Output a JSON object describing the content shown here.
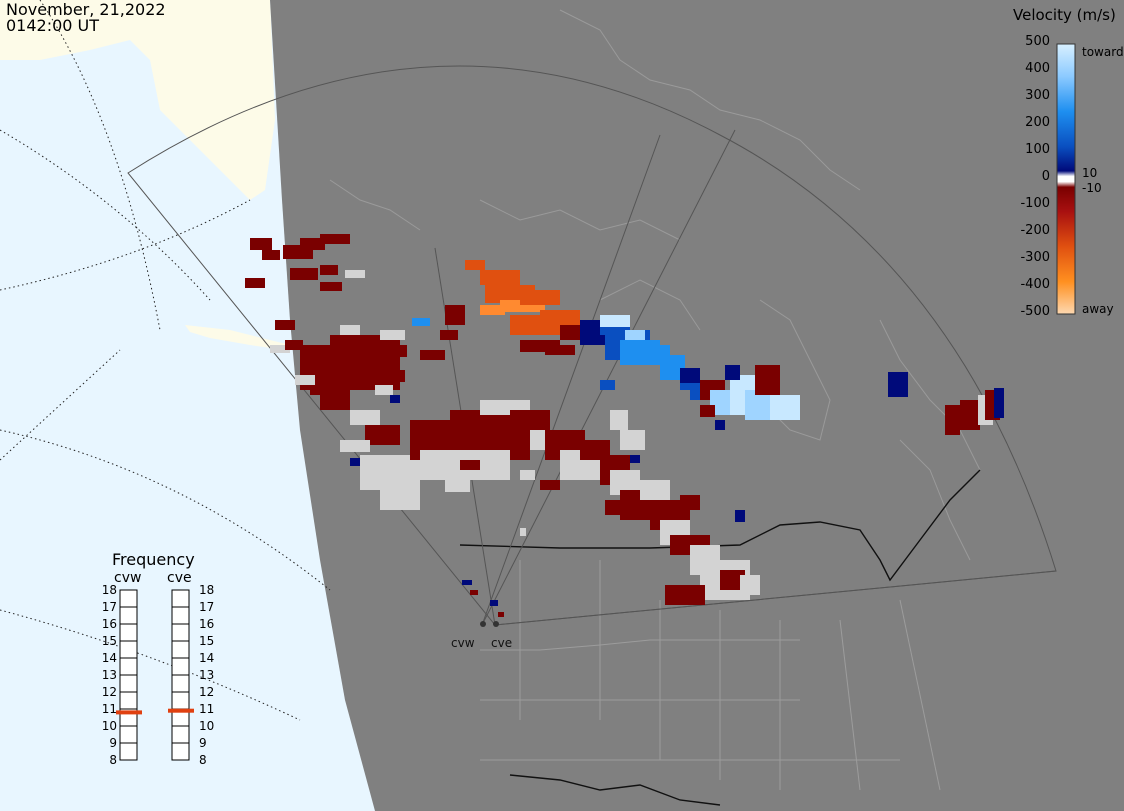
{
  "header": {
    "date": "November, 21,2022",
    "time": "0142:00 UT"
  },
  "legend": {
    "title": "Velocity (m/s)",
    "ticks": [
      "500",
      "400",
      "300",
      "200",
      "100",
      "0",
      "-100",
      "-200",
      "-300",
      "-400",
      "-500"
    ],
    "toward_label": "toward",
    "away_label": "away",
    "pos_threshold": "10",
    "neg_threshold": "-10",
    "colors": {
      "toward_max": "#c8e8ff",
      "toward_mid": "#1e8ff0",
      "toward_min": "#000a7a",
      "away_min": "#7a0000",
      "away_mid": "#e05010",
      "away_max": "#fdd0a0",
      "ground_scatter": "#d3d3d3"
    }
  },
  "frequency": {
    "title": "Frequency",
    "left_radar": "cvw",
    "right_radar": "cve",
    "levels": [
      "18",
      "17",
      "16",
      "15",
      "14",
      "13",
      "12",
      "11",
      "10",
      "9",
      "8"
    ],
    "cvw_mhz": 10.8,
    "cve_mhz": 10.9,
    "marker_color": "#e04010"
  },
  "sites": [
    {
      "label": "cvw"
    },
    {
      "label": "cve"
    }
  ],
  "map_colors": {
    "land": "#808080",
    "ocean": "#e8f6ff",
    "sea_ice": "#fdfbe8",
    "outline": "#999999"
  }
}
